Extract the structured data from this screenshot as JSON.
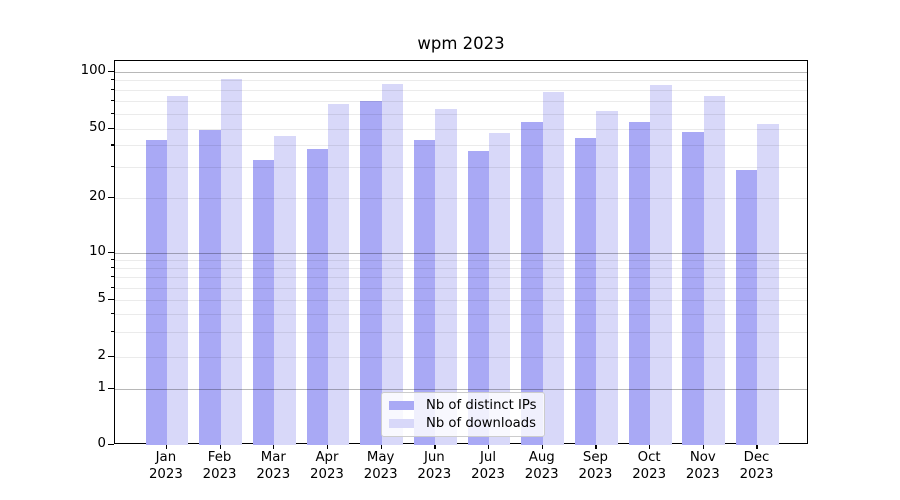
{
  "chart_data": {
    "type": "bar",
    "title": "wpm 2023",
    "categories": [
      "Jan",
      "Feb",
      "Mar",
      "Apr",
      "May",
      "Jun",
      "Jul",
      "Aug",
      "Sep",
      "Oct",
      "Nov",
      "Dec"
    ],
    "year_label": "2023",
    "series": [
      {
        "name": "Nb of distinct IPs",
        "color": "#a9a9f5",
        "values": [
          43,
          49,
          33,
          38,
          70,
          43,
          37,
          54,
          44,
          54,
          48,
          29
        ]
      },
      {
        "name": "Nb of downloads",
        "color": "#d8d8f9",
        "values": [
          74,
          91,
          45,
          67,
          86,
          63,
          47,
          78,
          62,
          85,
          74,
          53
        ]
      }
    ],
    "xlabel": "",
    "ylabel": "",
    "yscale": "log-like (linear below 1, includes 0)",
    "ylim": [
      0,
      114
    ],
    "yticks": [
      0,
      1,
      2,
      5,
      10,
      20,
      50,
      100
    ],
    "minor_gridlines": [
      2,
      3,
      4,
      5,
      6,
      7,
      8,
      9,
      20,
      30,
      40,
      50,
      60,
      70,
      80,
      90
    ],
    "major_gridlines": [
      1,
      10,
      100
    ],
    "grid": true,
    "legend_position": "lower center"
  }
}
